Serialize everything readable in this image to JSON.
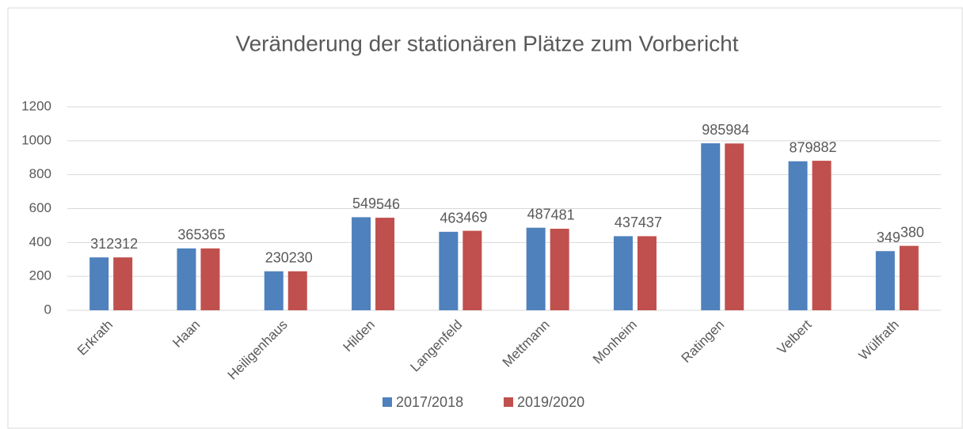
{
  "chart_data": {
    "type": "bar",
    "title": "Veränderung der stationären Plätze zum Vorbericht",
    "categories": [
      "Erkrath",
      "Haan",
      "Heiligenhaus",
      "Hilden",
      "Langenfeld",
      "Mettmann",
      "Monheim",
      "Ratingen",
      "Velbert",
      "Wülfrath"
    ],
    "series": [
      {
        "name": "2017/2018",
        "color": "#4f81bd",
        "values": [
          312,
          365,
          230,
          549,
          463,
          487,
          437,
          985,
          879,
          349
        ]
      },
      {
        "name": "2019/2020",
        "color": "#c0504d",
        "values": [
          312,
          365,
          230,
          546,
          469,
          481,
          437,
          984,
          882,
          380
        ]
      }
    ],
    "ylim": [
      0,
      1200
    ],
    "yticks": [
      0,
      200,
      400,
      600,
      800,
      1000,
      1200
    ],
    "grid": true,
    "legend": "bottom"
  }
}
